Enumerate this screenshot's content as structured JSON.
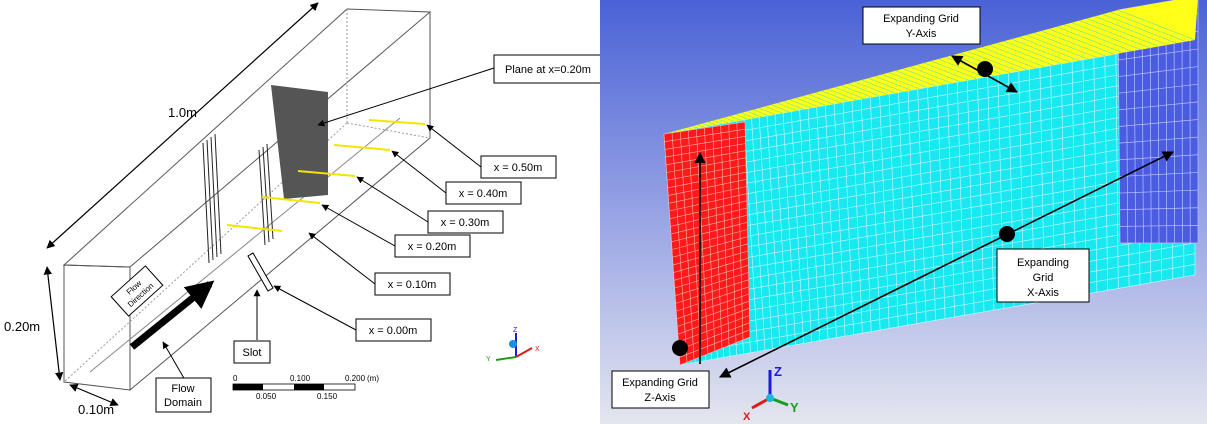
{
  "left": {
    "dimensions": {
      "length": "1.0m",
      "height": "0.20m",
      "width": "0.10m"
    },
    "plane_label": "Plane at x=0.20m",
    "x_labels": [
      "x = 0.50m",
      "x = 0.40m",
      "x = 0.30m",
      "x = 0.20m",
      "x = 0.10m",
      "x = 0.00m"
    ],
    "flow_direction": [
      "Flow",
      "Direction"
    ],
    "flow_domain": [
      "Flow",
      "Domain"
    ],
    "slot": "Slot",
    "scale_bar": {
      "top_ticks": [
        "0",
        "0.100",
        "0.200"
      ],
      "unit": "(m)",
      "bottom_ticks": [
        "0.050",
        "0.150"
      ]
    },
    "triad": {
      "z": "Z",
      "y": "Y",
      "x": "X"
    }
  },
  "right": {
    "y_axis_label": [
      "Expanding Grid",
      "Y-Axis"
    ],
    "x_axis_label": [
      "Expanding",
      "Grid",
      "X-Axis"
    ],
    "z_axis_label": [
      "Expanding Grid",
      "Z-Axis"
    ],
    "triad": {
      "z": "Z",
      "y": "Y",
      "x": "X"
    }
  },
  "colors": {
    "plane": "#555555",
    "marker_lines": "#f2e600",
    "background_gradient_top": "#4a62d6",
    "background_gradient_bottom": "#e4e6ee",
    "mesh_cyan": "#19e8f0",
    "mesh_yellow": "#ffff1a",
    "mesh_red": "#ff1a1a",
    "mesh_blue": "#4c5ce0"
  }
}
